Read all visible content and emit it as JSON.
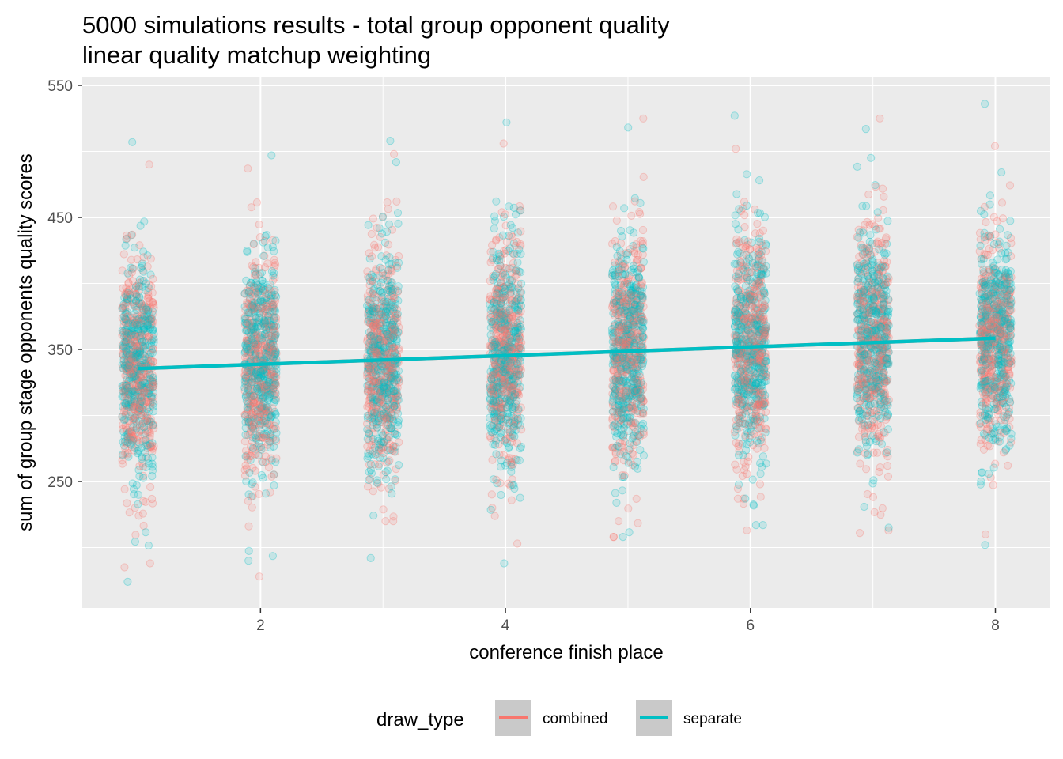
{
  "chart_data": {
    "type": "scatter",
    "title": "5000 simulations results - total group opponent quality",
    "subtitle": "linear quality matchup weighting",
    "xlabel": "conference finish place",
    "ylabel": "sum of group stage opponents quality scores",
    "xlim": [
      0.55,
      8.45
    ],
    "ylim": [
      160,
      560
    ],
    "x_ticks": [
      2,
      4,
      6,
      8
    ],
    "y_ticks": [
      250,
      350,
      450,
      550
    ],
    "grid": true,
    "panel_background": "#ebebeb",
    "legend": {
      "title": "draw_type",
      "position": "bottom",
      "entries": [
        {
          "label": "combined",
          "color": "#f8766d"
        },
        {
          "label": "separate",
          "color": "#00bfc4"
        }
      ]
    },
    "series": [
      {
        "name": "combined",
        "color": "#f8766d",
        "jitter_width": 0.13,
        "points_per_place": 5000,
        "distribution": [
          {
            "x": 1,
            "mean": 336,
            "sd": 46,
            "min": 185,
            "max": 490
          },
          {
            "x": 2,
            "mean": 339,
            "sd": 46,
            "min": 178,
            "max": 487
          },
          {
            "x": 3,
            "mean": 342,
            "sd": 46,
            "min": 220,
            "max": 498
          },
          {
            "x": 4,
            "mean": 345,
            "sd": 46,
            "min": 203,
            "max": 506
          },
          {
            "x": 5,
            "mean": 348,
            "sd": 46,
            "min": 208,
            "max": 525
          },
          {
            "x": 6,
            "mean": 352,
            "sd": 46,
            "min": 213,
            "max": 502
          },
          {
            "x": 7,
            "mean": 355,
            "sd": 46,
            "min": 211,
            "max": 525
          },
          {
            "x": 8,
            "mean": 358,
            "sd": 46,
            "min": 210,
            "max": 504
          }
        ]
      },
      {
        "name": "separate",
        "color": "#00bfc4",
        "jitter_width": 0.13,
        "points_per_place": 5000,
        "distribution": [
          {
            "x": 1,
            "mean": 336,
            "sd": 46,
            "min": 174,
            "max": 507
          },
          {
            "x": 2,
            "mean": 339,
            "sd": 46,
            "min": 190,
            "max": 497
          },
          {
            "x": 3,
            "mean": 342,
            "sd": 46,
            "min": 192,
            "max": 508
          },
          {
            "x": 4,
            "mean": 345,
            "sd": 46,
            "min": 188,
            "max": 522
          },
          {
            "x": 5,
            "mean": 348,
            "sd": 46,
            "min": 208,
            "max": 518
          },
          {
            "x": 6,
            "mean": 352,
            "sd": 46,
            "min": 217,
            "max": 527
          },
          {
            "x": 7,
            "mean": 355,
            "sd": 46,
            "min": 215,
            "max": 517
          },
          {
            "x": 8,
            "mean": 358,
            "sd": 46,
            "min": 202,
            "max": 536
          }
        ]
      }
    ],
    "trend_lines": [
      {
        "series": "combined",
        "color": "#f8766d",
        "x": [
          1,
          8
        ],
        "y": [
          335.5,
          358.5
        ]
      },
      {
        "series": "separate",
        "color": "#00bfc4",
        "x": [
          1,
          8
        ],
        "y": [
          335.5,
          358.5
        ]
      }
    ]
  }
}
